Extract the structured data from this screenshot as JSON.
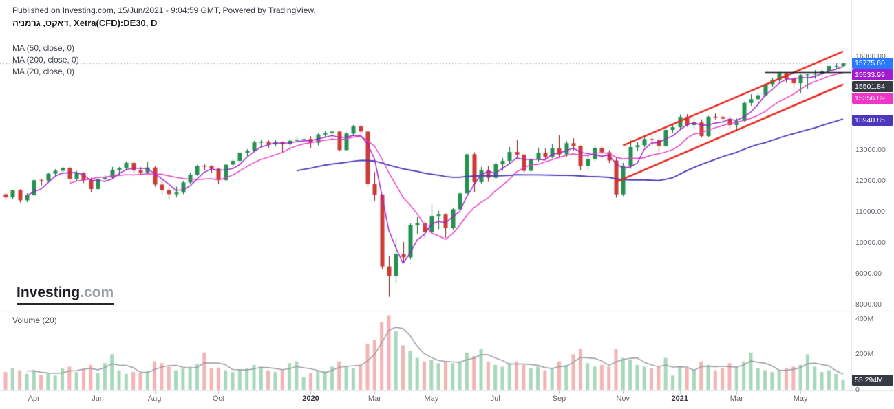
{
  "header": {
    "published": "Published on Investing.com, 15/Jun/2021 - 9:04:59 GMT, Powered by TradingView.",
    "title": "דאקס, גרמניה, Xetra(CFD):DE30, D"
  },
  "logo": {
    "bold": "Investing",
    "light": ".com"
  },
  "chart_data": {
    "type": "candlestick",
    "symbol": "Xetra(CFD):DE30",
    "interval": "D",
    "indicators": [
      {
        "label": "MA (50, close, 0)",
        "period": 50,
        "render_period": 10,
        "color": "#ee35c6",
        "width": 1.4
      },
      {
        "label": "MA (200, close, 0)",
        "period": 200,
        "render_period": 42,
        "color": "#4b38bd",
        "width": 1.8
      },
      {
        "label": "MA (20, close, 0)",
        "period": 20,
        "render_period": 4,
        "color": "#a21ccf",
        "width": 1.4
      }
    ],
    "price_axis": {
      "min": 7850,
      "max": 16600,
      "ticks": [
        16000,
        15000,
        14000,
        13000,
        12000,
        11000,
        10000,
        9000,
        8000
      ]
    },
    "x_ticks": [
      {
        "date": "2019-04-01",
        "label": "Apr"
      },
      {
        "date": "2019-06-01",
        "label": "Jun"
      },
      {
        "date": "2019-08-01",
        "label": "Aug"
      },
      {
        "date": "2019-10-01",
        "label": "Oct"
      },
      {
        "date": "2020-01-01",
        "label": "2020",
        "bold": true
      },
      {
        "date": "2020-03-01",
        "label": "Mar"
      },
      {
        "date": "2020-05-01",
        "label": "May"
      },
      {
        "date": "2020-07-01",
        "label": "Jul"
      },
      {
        "date": "2020-09-01",
        "label": "Sep"
      },
      {
        "date": "2020-11-01",
        "label": "Nov"
      },
      {
        "date": "2021-01-01",
        "label": "2021",
        "bold": true
      },
      {
        "date": "2021-03-01",
        "label": "Mar"
      },
      {
        "date": "2021-05-01",
        "label": "May"
      }
    ],
    "colors": {
      "up": "#239150",
      "up_border": "#0d6b36",
      "down": "#cc3b35",
      "down_border": "#7e1f1d"
    },
    "last_price_line": {
      "color": "#a8adb8"
    },
    "price_tags": [
      {
        "value": 15775.6,
        "label": "15775.60",
        "color": "#2979ff",
        "name": "last-price-tag"
      },
      {
        "value": 15533.99,
        "label": "15533.99",
        "color": "#a21ccf",
        "name": "ma20-value-tag"
      },
      {
        "value": 15501.84,
        "label": "15501.84",
        "color": "#363a45",
        "name": "horizontal-line-value-tag"
      },
      {
        "value": 15356.89,
        "label": "15356.89",
        "color": "#ee35c6",
        "name": "ma50-value-tag"
      },
      {
        "value": 13940.85,
        "label": "13940.85",
        "color": "#4b38bd",
        "name": "ma200-value-tag"
      }
    ],
    "trend_lines": [
      {
        "name": "channel-lower",
        "from": {
          "date": "2020-10-30",
          "price": 11950
        },
        "to": {
          "date": "2021-06-15",
          "price": 15100
        },
        "color": "#e8281e",
        "width": 2.6
      },
      {
        "name": "channel-upper",
        "from": {
          "date": "2020-11-06",
          "price": 13130
        },
        "to": {
          "date": "2021-06-15",
          "price": 16160
        },
        "color": "#e8281e",
        "width": 2.6
      }
    ],
    "horizontal_line": {
      "from": "2021-04-01",
      "price": 15501.84,
      "color": "#14161c",
      "width": 1.6
    },
    "volume": {
      "label": "Volume (20)",
      "period": 20,
      "render_period": 4,
      "axis_max": 430,
      "axis_ticks": [
        {
          "v": 400,
          "label": "400M"
        },
        {
          "v": 200,
          "label": "200M"
        },
        {
          "v": 0,
          "label": "0"
        }
      ],
      "last_value": 55.294,
      "last_label": "55.294M",
      "up_color": "rgba(110,190,142,0.6)",
      "down_color": "rgba(240,148,148,0.7)",
      "ma_color": "#9598a1",
      "values": [
        100,
        120,
        110,
        90,
        110,
        85,
        95,
        80,
        120,
        130,
        100,
        115,
        140,
        95,
        150,
        200,
        110,
        90,
        100,
        95,
        105,
        160,
        150,
        130,
        110,
        120,
        130,
        145,
        210,
        120,
        125,
        110,
        100,
        115,
        120,
        140,
        130,
        110,
        100,
        115,
        150,
        160,
        70,
        95,
        110,
        105,
        130,
        160,
        130,
        120,
        140,
        260,
        280,
        380,
        420,
        330,
        250,
        220,
        180,
        160,
        170,
        150,
        160,
        150,
        160,
        210,
        190,
        230,
        160,
        140,
        130,
        150,
        160,
        140,
        120,
        130,
        110,
        120,
        160,
        140,
        200,
        230,
        150,
        130,
        140,
        130,
        230,
        180,
        170,
        140,
        130,
        120,
        130,
        180,
        80,
        130,
        120,
        110,
        160,
        140,
        110,
        120,
        150,
        130,
        160,
        210,
        120,
        110,
        100,
        110,
        120,
        130,
        140,
        200,
        130,
        100,
        110,
        90,
        55.294
      ]
    },
    "candles": [
      [
        "2019-03-08",
        11560,
        11590,
        11380,
        11458
      ],
      [
        "2019-03-15",
        11458,
        11700,
        11400,
        11686
      ],
      [
        "2019-03-22",
        11686,
        11720,
        11290,
        11364
      ],
      [
        "2019-03-29",
        11364,
        11590,
        11300,
        11526
      ],
      [
        "2019-04-05",
        11526,
        12040,
        11500,
        12010
      ],
      [
        "2019-04-12",
        12010,
        12060,
        11850,
        12000
      ],
      [
        "2019-04-18",
        12000,
        12250,
        11960,
        12222
      ],
      [
        "2019-04-26",
        12222,
        12370,
        12150,
        12315
      ],
      [
        "2019-05-03",
        12315,
        12440,
        12210,
        12413
      ],
      [
        "2019-05-10",
        12413,
        12460,
        11940,
        12060
      ],
      [
        "2019-05-17",
        12060,
        12310,
        11990,
        12239
      ],
      [
        "2019-05-24",
        12239,
        12270,
        11920,
        12011
      ],
      [
        "2019-05-31",
        12011,
        12090,
        11620,
        11727
      ],
      [
        "2019-06-07",
        11727,
        12100,
        11680,
        12045
      ],
      [
        "2019-06-14",
        12045,
        12180,
        11950,
        12096
      ],
      [
        "2019-06-21",
        12096,
        12440,
        12040,
        12340
      ],
      [
        "2019-06-28",
        12340,
        12440,
        12190,
        12399
      ],
      [
        "2019-07-05",
        12399,
        12620,
        12330,
        12569
      ],
      [
        "2019-07-12",
        12569,
        12600,
        12250,
        12323
      ],
      [
        "2019-07-19",
        12323,
        12430,
        12190,
        12260
      ],
      [
        "2019-07-26",
        12260,
        12600,
        12210,
        12420
      ],
      [
        "2019-08-02",
        12420,
        12460,
        11800,
        11872
      ],
      [
        "2019-08-09",
        11872,
        12010,
        11560,
        11694
      ],
      [
        "2019-08-16",
        11694,
        11780,
        11400,
        11563
      ],
      [
        "2019-08-23",
        11563,
        11800,
        11470,
        11612
      ],
      [
        "2019-08-30",
        11612,
        11990,
        11560,
        11939
      ],
      [
        "2019-09-06",
        11939,
        12250,
        11900,
        12192
      ],
      [
        "2019-09-13",
        12192,
        12500,
        12150,
        12469
      ],
      [
        "2019-09-20",
        12469,
        12530,
        12330,
        12468
      ],
      [
        "2019-09-27",
        12468,
        12490,
        12240,
        12381
      ],
      [
        "2019-10-04",
        12381,
        12410,
        11880,
        12013
      ],
      [
        "2019-10-11",
        12013,
        12540,
        11950,
        12512
      ],
      [
        "2019-10-18",
        12512,
        12710,
        12430,
        12634
      ],
      [
        "2019-10-25",
        12634,
        12920,
        12580,
        12895
      ],
      [
        "2019-11-01",
        12895,
        13010,
        12790,
        12961
      ],
      [
        "2019-11-08",
        12961,
        13280,
        12910,
        13229
      ],
      [
        "2019-11-15",
        13229,
        13310,
        13090,
        13242
      ],
      [
        "2019-11-22",
        13242,
        13290,
        13060,
        13164
      ],
      [
        "2019-11-29",
        13164,
        13310,
        13100,
        13236
      ],
      [
        "2019-12-06",
        13236,
        13260,
        12890,
        13167
      ],
      [
        "2019-12-13",
        13167,
        13340,
        12950,
        13283
      ],
      [
        "2019-12-20",
        13283,
        13420,
        13220,
        13319
      ],
      [
        "2019-12-27",
        13319,
        13390,
        13270,
        13337
      ],
      [
        "2020-01-03",
        13337,
        13430,
        13050,
        13219
      ],
      [
        "2020-01-10",
        13219,
        13530,
        13130,
        13483
      ],
      [
        "2020-01-17",
        13483,
        13600,
        13390,
        13526
      ],
      [
        "2020-01-24",
        13526,
        13640,
        13330,
        13577
      ],
      [
        "2020-01-31",
        13577,
        13590,
        12950,
        12982
      ],
      [
        "2020-02-07",
        12982,
        13550,
        12970,
        13514
      ],
      [
        "2020-02-14",
        13514,
        13790,
        13440,
        13744
      ],
      [
        "2020-02-21",
        13744,
        13800,
        13500,
        13579
      ],
      [
        "2020-02-28",
        13579,
        13600,
        11800,
        11890
      ],
      [
        "2020-03-06",
        11890,
        12270,
        11340,
        11542
      ],
      [
        "2020-03-13",
        11542,
        11560,
        9140,
        9232
      ],
      [
        "2020-03-20",
        9232,
        9560,
        8255,
        8929
      ],
      [
        "2020-03-27",
        8929,
        10140,
        8700,
        9633
      ],
      [
        "2020-04-03",
        9633,
        10020,
        9340,
        9526
      ],
      [
        "2020-04-09",
        9526,
        10620,
        9460,
        10564
      ],
      [
        "2020-04-17",
        10564,
        10820,
        10280,
        10626
      ],
      [
        "2020-04-24",
        10626,
        10700,
        10140,
        10336
      ],
      [
        "2020-05-01",
        10336,
        11240,
        10250,
        10862
      ],
      [
        "2020-05-08",
        10862,
        11020,
        10430,
        10904
      ],
      [
        "2020-05-15",
        10904,
        10940,
        10160,
        10465
      ],
      [
        "2020-05-22",
        10465,
        11120,
        10420,
        11074
      ],
      [
        "2020-05-29",
        11074,
        11640,
        11020,
        11587
      ],
      [
        "2020-06-05",
        11587,
        12870,
        11560,
        12847
      ],
      [
        "2020-06-12",
        12847,
        12910,
        11620,
        11949
      ],
      [
        "2020-06-19",
        11949,
        12440,
        11890,
        12331
      ],
      [
        "2020-06-26",
        12331,
        12480,
        11960,
        12089
      ],
      [
        "2020-07-03",
        12089,
        12610,
        12030,
        12528
      ],
      [
        "2020-07-10",
        12528,
        12730,
        12320,
        12633
      ],
      [
        "2020-07-17",
        12633,
        13080,
        12550,
        12920
      ],
      [
        "2020-07-24",
        12920,
        13310,
        12740,
        12838
      ],
      [
        "2020-07-31",
        12838,
        12860,
        12250,
        12313
      ],
      [
        "2020-08-07",
        12313,
        12690,
        12280,
        12675
      ],
      [
        "2020-08-14",
        12675,
        13060,
        12600,
        12901
      ],
      [
        "2020-08-21",
        12901,
        13030,
        12690,
        12765
      ],
      [
        "2020-08-28",
        12765,
        13180,
        12720,
        13033
      ],
      [
        "2020-09-04",
        13033,
        13460,
        12740,
        12843
      ],
      [
        "2020-09-11",
        12843,
        13270,
        12770,
        13203
      ],
      [
        "2020-09-18",
        13203,
        13360,
        12970,
        13116
      ],
      [
        "2020-09-25",
        13116,
        13130,
        12340,
        12469
      ],
      [
        "2020-10-02",
        12469,
        12810,
        12320,
        12689
      ],
      [
        "2020-10-09",
        12689,
        13140,
        12620,
        13052
      ],
      [
        "2020-10-16",
        13052,
        13120,
        12700,
        12909
      ],
      [
        "2020-10-23",
        12909,
        12980,
        12560,
        12646
      ],
      [
        "2020-10-30",
        12646,
        12740,
        11450,
        11556
      ],
      [
        "2020-11-06",
        11556,
        12570,
        11500,
        12480
      ],
      [
        "2020-11-13",
        12480,
        13300,
        12380,
        13077
      ],
      [
        "2020-11-20",
        13077,
        13240,
        12950,
        13137
      ],
      [
        "2020-11-27",
        13137,
        13450,
        13070,
        13336
      ],
      [
        "2020-12-04",
        13336,
        13460,
        13120,
        13299
      ],
      [
        "2020-12-11",
        13299,
        13370,
        12920,
        13114
      ],
      [
        "2020-12-18",
        13114,
        13670,
        13070,
        13631
      ],
      [
        "2020-12-30",
        13631,
        13820,
        13540,
        13719
      ],
      [
        "2021-01-08",
        13719,
        14130,
        13640,
        14050
      ],
      [
        "2021-01-15",
        14050,
        14140,
        13730,
        13788
      ],
      [
        "2021-01-22",
        13788,
        14030,
        13670,
        13874
      ],
      [
        "2021-01-29",
        13874,
        13970,
        13390,
        13433
      ],
      [
        "2021-02-05",
        13433,
        14080,
        13400,
        14057
      ],
      [
        "2021-02-12",
        14057,
        14160,
        13970,
        14050
      ],
      [
        "2021-02-19",
        14050,
        14120,
        13860,
        13993
      ],
      [
        "2021-02-26",
        13993,
        14080,
        13660,
        13786
      ],
      [
        "2021-03-05",
        13786,
        14000,
        13600,
        13921
      ],
      [
        "2021-03-12",
        13921,
        14540,
        13900,
        14502
      ],
      [
        "2021-03-19",
        14502,
        14780,
        14410,
        14621
      ],
      [
        "2021-03-26",
        14621,
        14820,
        14380,
        14749
      ],
      [
        "2021-04-01",
        14749,
        15120,
        14710,
        15107
      ],
      [
        "2021-04-09",
        15107,
        15310,
        15010,
        15234
      ],
      [
        "2021-04-16",
        15234,
        15500,
        15170,
        15460
      ],
      [
        "2021-04-23",
        15460,
        15480,
        15150,
        15280
      ],
      [
        "2021-04-30",
        15280,
        15330,
        14990,
        15136
      ],
      [
        "2021-05-07",
        15136,
        15430,
        14820,
        15400
      ],
      [
        "2021-05-14",
        15400,
        15440,
        14960,
        15417
      ],
      [
        "2021-05-21",
        15417,
        15560,
        15280,
        15438
      ],
      [
        "2021-05-28",
        15438,
        15570,
        15340,
        15520
      ],
      [
        "2021-06-04",
        15520,
        15700,
        15420,
        15693
      ],
      [
        "2021-06-11",
        15693,
        15780,
        15590,
        15693
      ],
      [
        "2021-06-15",
        15693,
        15800,
        15660,
        15776
      ]
    ]
  }
}
